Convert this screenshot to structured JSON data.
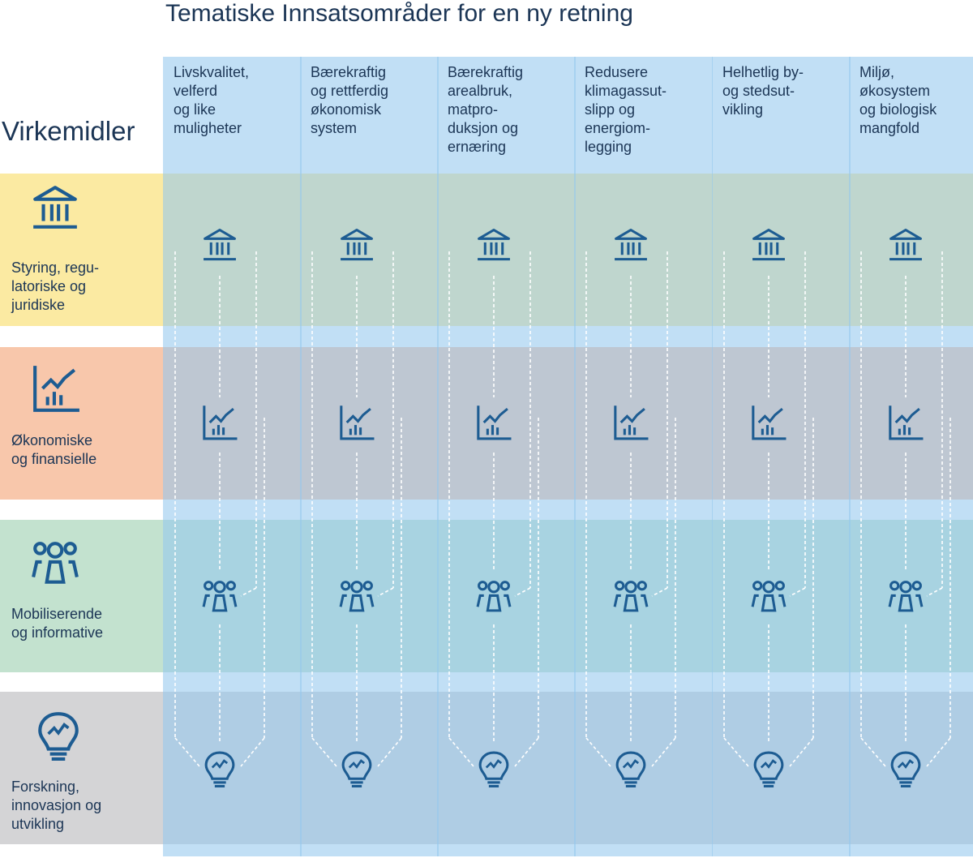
{
  "title": "Tematiske Innsatsområder for en ny retning",
  "left_heading": "Virkemidler",
  "themes": [
    {
      "label": "Livskvalitet,\nvelferd\nog like\nmuligheter"
    },
    {
      "label": "Bærekraftig\nog rettferdig\nøkonomisk\nsystem"
    },
    {
      "label": "Bærekraftig\narealbruk,\nmatpro-\nduksjon og\nernæring"
    },
    {
      "label": "Redusere\nklimagassut-\nslipp og\nenergiom-\nlegging"
    },
    {
      "label": "Helhetlig  by-\nog stedsut-\nvikling"
    },
    {
      "label": "Miljø,\nøkosystem\nog biologisk\nmangfold"
    }
  ],
  "instruments": [
    {
      "label": "Styring, regu-\nlatoriske og\njuridiske",
      "icon": "institution-icon",
      "color": "#fbeaa2"
    },
    {
      "label": "Økonomiske\nog finansielle",
      "icon": "chart-icon",
      "color": "#f8c7ab"
    },
    {
      "label": "Mobiliserende\nog informative",
      "icon": "people-icon",
      "color": "#c3e2cf"
    },
    {
      "label": "Forskning,\ninnovasjon og\nutvikling",
      "icon": "lightbulb-icon",
      "color": "#d4d4d6"
    }
  ],
  "colors": {
    "column": "#94c8ee",
    "icon": "#1d5c92",
    "text": "#1b3555",
    "connector": "#ffffff"
  }
}
